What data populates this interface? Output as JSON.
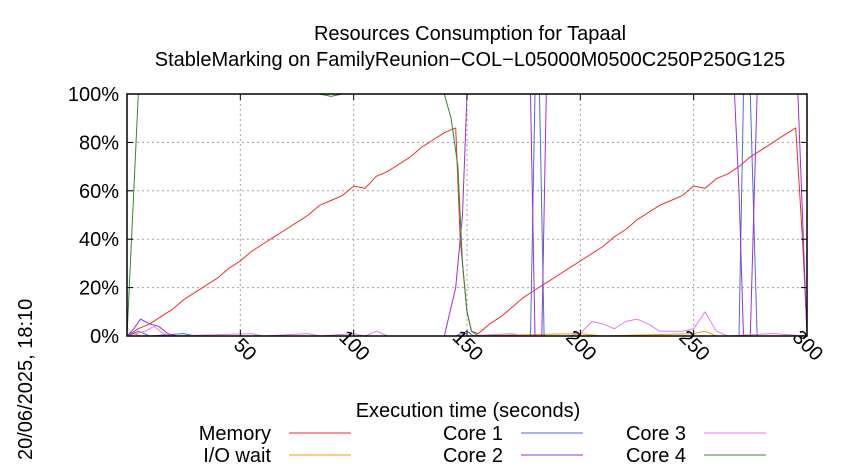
{
  "chart_data": {
    "type": "line",
    "title": "Resources Consumption for Tapaal",
    "subtitle": "StableMarking on FamilyReunion−COL−L05000M0500C250P250G125",
    "xlabel": "Execution time (seconds)",
    "ylabel": "",
    "side_text": "20/06/2025, 18:10",
    "xlim": [
      0,
      300
    ],
    "ylim": [
      0,
      100
    ],
    "grid": true,
    "legend_position": "bottom",
    "x_ticks": [
      {
        "value": 50,
        "label": "50"
      },
      {
        "value": 100,
        "label": "100"
      },
      {
        "value": 150,
        "label": "150"
      },
      {
        "value": 200,
        "label": "200"
      },
      {
        "value": 250,
        "label": "250"
      },
      {
        "value": 300,
        "label": "300"
      }
    ],
    "y_ticks": [
      {
        "value": 0,
        "label": "0%"
      },
      {
        "value": 20,
        "label": "20%"
      },
      {
        "value": 40,
        "label": "40%"
      },
      {
        "value": 60,
        "label": "60%"
      },
      {
        "value": 80,
        "label": "80%"
      },
      {
        "value": 100,
        "label": "100%"
      }
    ],
    "series": [
      {
        "name": "Memory",
        "color": "#e8322c",
        "points": [
          [
            0,
            0
          ],
          [
            5,
            3
          ],
          [
            10,
            5
          ],
          [
            15,
            8
          ],
          [
            20,
            11
          ],
          [
            25,
            15
          ],
          [
            30,
            18
          ],
          [
            35,
            21
          ],
          [
            40,
            24
          ],
          [
            45,
            28
          ],
          [
            50,
            31
          ],
          [
            55,
            35
          ],
          [
            60,
            38
          ],
          [
            65,
            41
          ],
          [
            70,
            44
          ],
          [
            75,
            47
          ],
          [
            80,
            50
          ],
          [
            85,
            54
          ],
          [
            90,
            56
          ],
          [
            95,
            58
          ],
          [
            100,
            62
          ],
          [
            105,
            61
          ],
          [
            110,
            66
          ],
          [
            115,
            68
          ],
          [
            120,
            71
          ],
          [
            125,
            74
          ],
          [
            130,
            78
          ],
          [
            135,
            81
          ],
          [
            140,
            84
          ],
          [
            145,
            86
          ],
          [
            147,
            40
          ],
          [
            150,
            10
          ],
          [
            152,
            2
          ],
          [
            155,
            1
          ],
          [
            160,
            5
          ],
          [
            165,
            8
          ],
          [
            170,
            12
          ],
          [
            175,
            16
          ],
          [
            180,
            19
          ],
          [
            185,
            22
          ],
          [
            190,
            25
          ],
          [
            195,
            28
          ],
          [
            200,
            31
          ],
          [
            205,
            34
          ],
          [
            210,
            37
          ],
          [
            215,
            41
          ],
          [
            220,
            44
          ],
          [
            225,
            48
          ],
          [
            230,
            51
          ],
          [
            235,
            54
          ],
          [
            240,
            56
          ],
          [
            245,
            58
          ],
          [
            250,
            62
          ],
          [
            255,
            61
          ],
          [
            260,
            65
          ],
          [
            265,
            67
          ],
          [
            270,
            70
          ],
          [
            275,
            74
          ],
          [
            280,
            77
          ],
          [
            285,
            80
          ],
          [
            290,
            83
          ],
          [
            295,
            86
          ],
          [
            298,
            40
          ],
          [
            300,
            2
          ]
        ]
      },
      {
        "name": "I/O wait",
        "color": "#f0a000",
        "points": [
          [
            0,
            0
          ],
          [
            3,
            1
          ],
          [
            6,
            0
          ],
          [
            60,
            0
          ],
          [
            150,
            0
          ],
          [
            200,
            1
          ],
          [
            210,
            0
          ],
          [
            250,
            1
          ],
          [
            255,
            2
          ],
          [
            260,
            0
          ],
          [
            300,
            0
          ]
        ]
      },
      {
        "name": "Core 1",
        "color": "#4a6fd8",
        "points": [
          [
            0,
            0
          ],
          [
            5,
            2
          ],
          [
            10,
            0
          ],
          [
            25,
            1
          ],
          [
            30,
            0
          ],
          [
            145,
            0
          ],
          [
            150,
            2
          ],
          [
            153,
            0
          ],
          [
            178,
            0
          ],
          [
            180,
            100
          ],
          [
            182,
            100
          ],
          [
            184,
            0
          ],
          [
            270,
            0
          ],
          [
            272,
            100
          ],
          [
            275,
            100
          ],
          [
            278,
            0
          ],
          [
            300,
            0
          ]
        ]
      },
      {
        "name": "Core 2",
        "color": "#9b30d9",
        "points": [
          [
            0,
            0
          ],
          [
            3,
            3
          ],
          [
            6,
            7
          ],
          [
            10,
            5
          ],
          [
            14,
            4
          ],
          [
            18,
            1
          ],
          [
            22,
            0
          ],
          [
            140,
            0
          ],
          [
            145,
            20
          ],
          [
            148,
            50
          ],
          [
            150,
            100
          ],
          [
            178,
            100
          ],
          [
            180,
            0
          ],
          [
            183,
            0
          ],
          [
            185,
            100
          ],
          [
            268,
            100
          ],
          [
            270,
            60
          ],
          [
            272,
            0
          ],
          [
            275,
            0
          ],
          [
            278,
            100
          ],
          [
            296,
            100
          ],
          [
            300,
            0
          ]
        ]
      },
      {
        "name": "Core 3",
        "color": "#e87aea",
        "points": [
          [
            0,
            0
          ],
          [
            4,
            1
          ],
          [
            8,
            2
          ],
          [
            12,
            4
          ],
          [
            16,
            1
          ],
          [
            20,
            0
          ],
          [
            55,
            1
          ],
          [
            60,
            0
          ],
          [
            80,
            1
          ],
          [
            85,
            0
          ],
          [
            100,
            1
          ],
          [
            105,
            0
          ],
          [
            110,
            2
          ],
          [
            115,
            0
          ],
          [
            150,
            0
          ],
          [
            170,
            1
          ],
          [
            175,
            0
          ],
          [
            195,
            0
          ],
          [
            200,
            1
          ],
          [
            205,
            6
          ],
          [
            210,
            5
          ],
          [
            215,
            3
          ],
          [
            220,
            6
          ],
          [
            225,
            7
          ],
          [
            230,
            5
          ],
          [
            235,
            2
          ],
          [
            240,
            2
          ],
          [
            245,
            2
          ],
          [
            250,
            3
          ],
          [
            255,
            10
          ],
          [
            260,
            2
          ],
          [
            265,
            0
          ],
          [
            285,
            1
          ],
          [
            300,
            0
          ]
        ]
      },
      {
        "name": "Core 4",
        "color": "#2e8b2e",
        "points": [
          [
            0,
            0
          ],
          [
            3,
            60
          ],
          [
            5,
            100
          ],
          [
            85,
            100
          ],
          [
            90,
            99
          ],
          [
            95,
            100
          ],
          [
            140,
            100
          ],
          [
            143,
            90
          ],
          [
            146,
            70
          ],
          [
            148,
            30
          ],
          [
            150,
            10
          ],
          [
            152,
            2
          ],
          [
            155,
            0
          ],
          [
            300,
            0
          ]
        ]
      }
    ]
  }
}
